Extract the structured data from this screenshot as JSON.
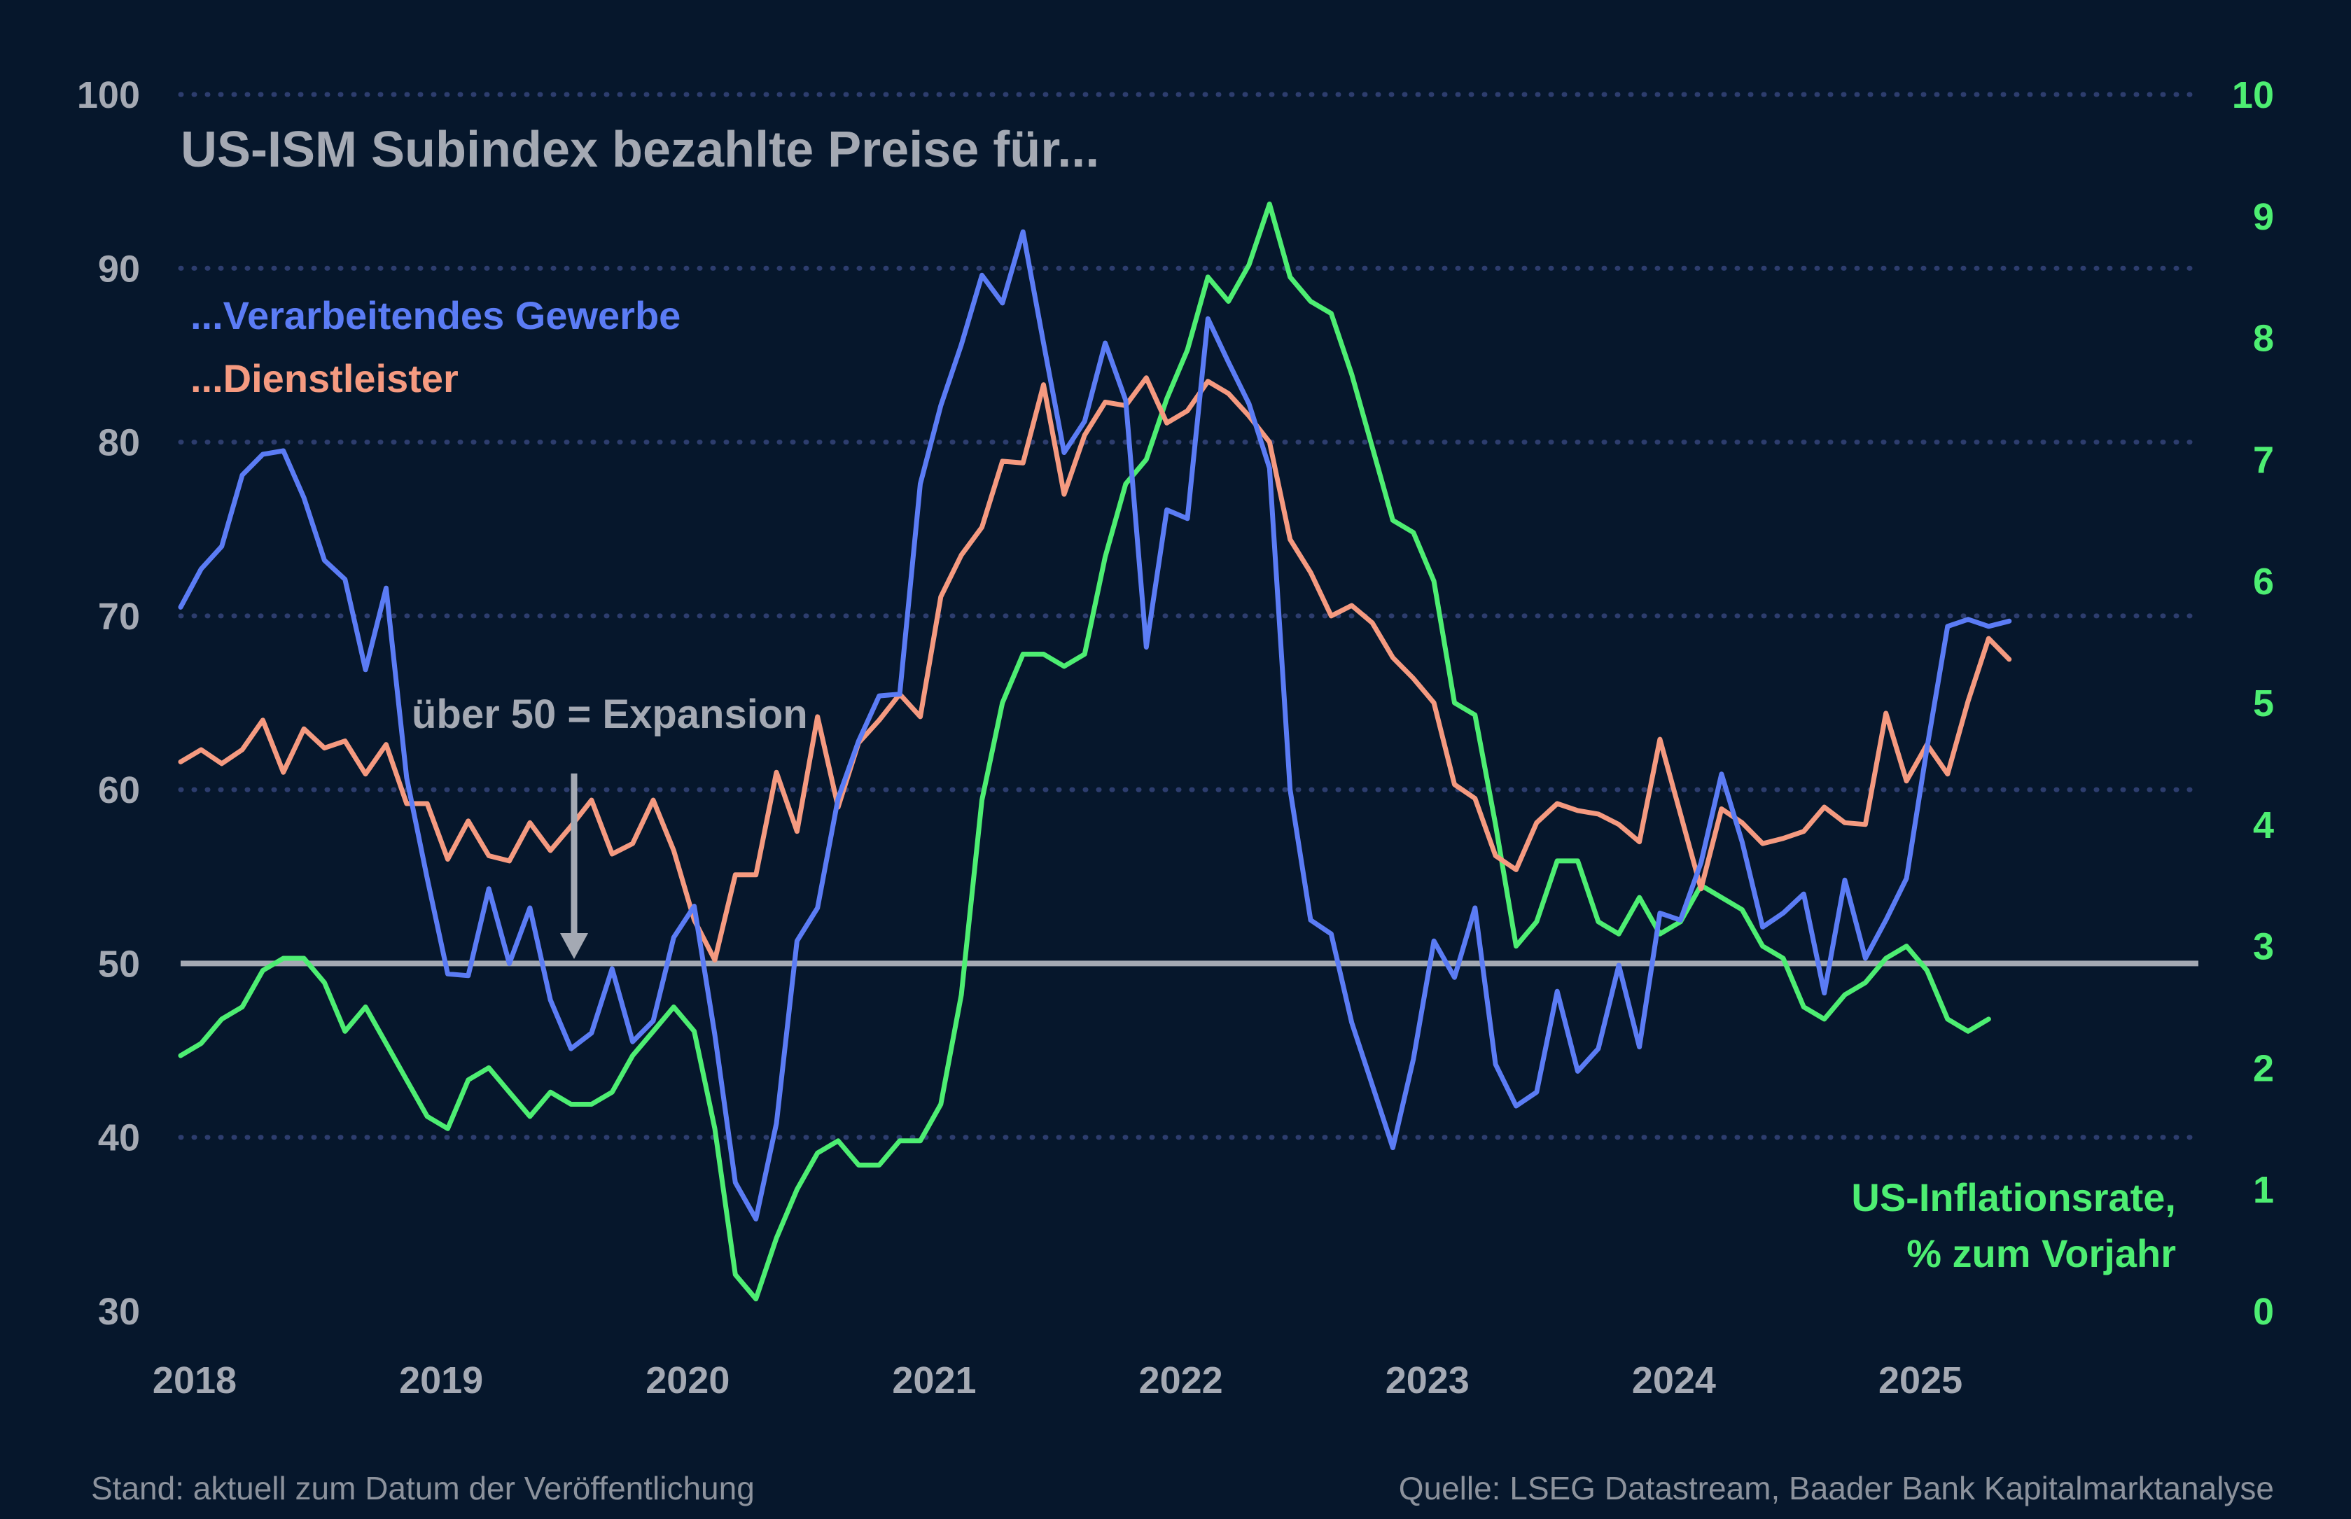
{
  "colors": {
    "background": "#06172c",
    "manufacturing": "#5b7cf5",
    "services": "#f59a80",
    "inflation": "#4dee72",
    "threshold": "#a4a9b3",
    "text": "#a4a9b3",
    "grid": "#2d3d6e"
  },
  "chart_data": {
    "type": "line",
    "title": "US-ISM Subindex bezahlte Preise für...",
    "y_left": {
      "lim": [
        30,
        100
      ],
      "ticks": [
        "30",
        "40",
        "50",
        "60",
        "70",
        "80",
        "90",
        "100"
      ]
    },
    "y_right": {
      "lim": [
        0,
        10
      ],
      "ticks": [
        "0",
        "1",
        "2",
        "3",
        "4",
        "5",
        "6",
        "7",
        "8",
        "9",
        "10"
      ]
    },
    "x": {
      "lim": [
        2018.0,
        2025.9
      ],
      "ticks": [
        "2018",
        "2019",
        "2020",
        "2021",
        "2022",
        "2023",
        "2024",
        "2025"
      ]
    },
    "grid": "dotted horizontal",
    "threshold": {
      "value": 50,
      "label": "über 50 = Expansion",
      "arrow_x": 2019.5
    },
    "series": [
      {
        "name": "...Verarbeitendes Gewerbe",
        "axis": "left",
        "color": "#5b7cf5",
        "start": [
          2018,
          1
        ],
        "values": [
          70.5,
          72.7,
          74.0,
          78.1,
          79.3,
          79.5,
          76.8,
          73.2,
          72.1,
          66.9,
          71.6,
          60.7,
          54.9,
          49.4,
          49.3,
          54.3,
          50.0,
          53.2,
          47.9,
          45.1,
          46.0,
          49.7,
          45.5,
          46.7,
          51.5,
          53.3,
          45.9,
          37.4,
          35.3,
          40.8,
          51.3,
          53.2,
          59.5,
          62.8,
          65.4,
          65.5,
          77.6,
          82.1,
          85.6,
          89.6,
          88.0,
          92.1,
          85.7,
          79.4,
          81.2,
          85.7,
          82.4,
          68.2,
          76.1,
          75.6,
          87.1,
          84.6,
          82.2,
          78.5,
          60.0,
          52.5,
          51.7,
          46.6,
          43.0,
          39.4,
          44.5,
          51.3,
          49.2,
          53.2,
          44.2,
          41.8,
          42.6,
          48.4,
          43.8,
          45.1,
          49.9,
          45.2,
          52.9,
          52.5,
          55.8,
          60.9,
          57.0,
          52.1,
          52.9,
          54.0,
          48.3,
          54.8,
          50.3,
          52.5,
          54.9,
          62.4,
          69.4,
          69.8,
          69.4,
          69.7
        ]
      },
      {
        "name": "...Dienstleister",
        "axis": "left",
        "color": "#f59a80",
        "start": [
          2018,
          1
        ],
        "values": [
          61.6,
          62.3,
          61.5,
          62.3,
          64.0,
          61.0,
          63.5,
          62.4,
          62.8,
          60.9,
          62.6,
          59.2,
          59.2,
          56.0,
          58.2,
          56.2,
          55.9,
          58.1,
          56.5,
          57.9,
          59.4,
          56.3,
          56.9,
          59.4,
          56.5,
          52.5,
          50.2,
          55.1,
          55.1,
          61.0,
          57.6,
          64.2,
          59.0,
          62.7,
          64.0,
          65.5,
          64.2,
          71.1,
          73.5,
          75.1,
          78.9,
          78.8,
          83.3,
          77.0,
          80.4,
          82.3,
          82.1,
          83.7,
          81.1,
          81.8,
          83.5,
          82.8,
          81.5,
          80.0,
          74.4,
          72.5,
          70.0,
          70.6,
          69.6,
          67.6,
          66.4,
          65.0,
          60.3,
          59.5,
          56.2,
          55.4,
          58.1,
          59.2,
          58.8,
          58.6,
          58.0,
          57.0,
          62.9,
          58.6,
          54.3,
          58.9,
          58.1,
          56.9,
          57.2,
          57.6,
          59.0,
          58.1,
          58.0,
          64.4,
          60.5,
          62.6,
          60.9,
          65.1,
          68.7,
          67.5
        ]
      },
      {
        "name": "US-Inflationsrate, % zum Vorjahr",
        "axis": "right",
        "color": "#4dee72",
        "start": [
          2018,
          1
        ],
        "values": [
          2.1,
          2.2,
          2.4,
          2.5,
          2.8,
          2.9,
          2.9,
          2.7,
          2.3,
          2.5,
          2.2,
          1.9,
          1.6,
          1.5,
          1.9,
          2.0,
          1.8,
          1.6,
          1.8,
          1.7,
          1.7,
          1.8,
          2.1,
          2.3,
          2.5,
          2.3,
          1.5,
          0.3,
          0.1,
          0.6,
          1.0,
          1.3,
          1.4,
          1.2,
          1.2,
          1.4,
          1.4,
          1.7,
          2.6,
          4.2,
          5.0,
          5.4,
          5.4,
          5.3,
          5.4,
          6.2,
          6.8,
          7.0,
          7.5,
          7.9,
          8.5,
          8.3,
          8.6,
          9.1,
          8.5,
          8.3,
          8.2,
          7.7,
          7.1,
          6.5,
          6.4,
          6.0,
          5.0,
          4.9,
          4.0,
          3.0,
          3.2,
          3.7,
          3.7,
          3.2,
          3.1,
          3.4,
          3.1,
          3.2,
          3.5,
          3.4,
          3.3,
          3.0,
          2.9,
          2.5,
          2.4,
          2.6,
          2.7,
          2.9,
          3.0,
          2.8,
          2.4,
          2.3,
          2.4
        ]
      }
    ]
  },
  "labels": {
    "title": "US-ISM Subindex bezahlte Preise für...",
    "legend_manufacturing": "...Verarbeitendes Gewerbe",
    "legend_services": "...Dienstleister",
    "inflation_line1": "US-Inflationsrate,",
    "inflation_line2": "% zum Vorjahr",
    "annotation": "über 50 = Expansion",
    "footer_left": "Stand: aktuell zum Datum der Veröffentlichung",
    "footer_right": "Quelle: LSEG Datastream, Baader Bank Kapitalmarktanalyse"
  }
}
